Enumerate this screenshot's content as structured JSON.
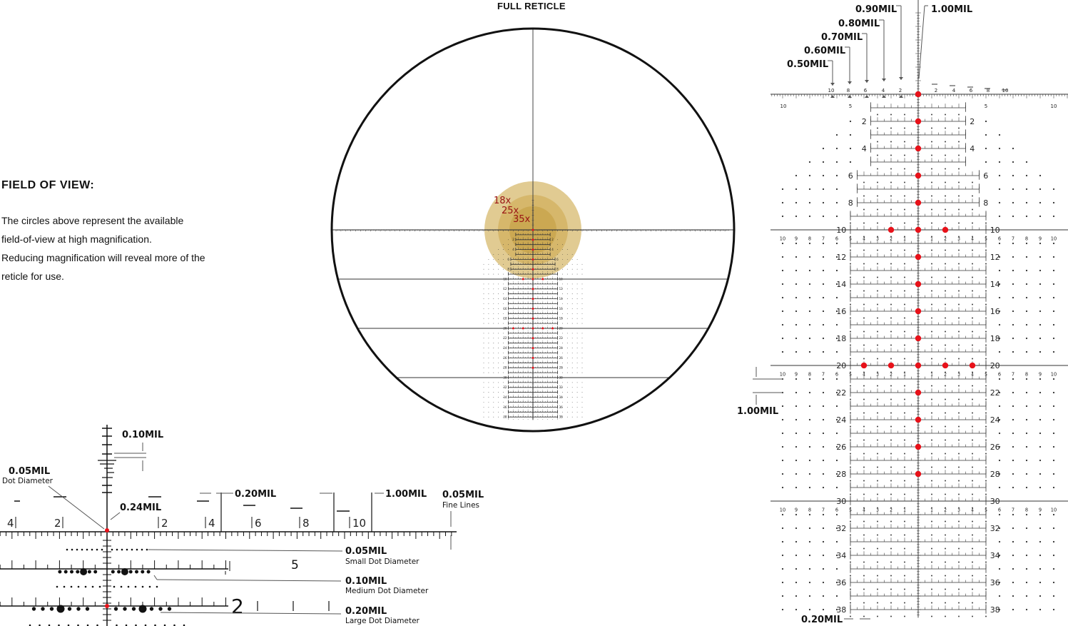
{
  "title": "FULL RETICLE",
  "fov": {
    "heading": "FIELD OF VIEW:",
    "lines": [
      "The circles above represent the available",
      "field-of-view at high magnification.",
      "Reducing magnification will reveal more of the",
      "reticle for use."
    ]
  },
  "magnifications": [
    "18x",
    "25x",
    "35x"
  ],
  "colors": {
    "accent_red": "#e8121a",
    "mag_label": "#9a1414",
    "gold_outer": "#dcc27f",
    "gold_mid": "#d3b464",
    "gold_inner": "#c9a64e"
  },
  "detail": {
    "scale_labels": [
      "4",
      "2",
      "2",
      "4",
      "6",
      "8",
      "10"
    ],
    "big_numbers": [
      "5",
      "2"
    ],
    "callouts": {
      "line_010": "0.10MIL",
      "dot_005": "0.05MIL",
      "dot_005_sub": "Dot Diameter",
      "gap_024": "0.24MIL",
      "line_020": "0.20MIL",
      "line_100": "1.00MIL",
      "fine_005": "0.05MIL",
      "fine_005_sub": "Fine Lines",
      "small_dot": "0.05MIL",
      "small_dot_sub": "Small Dot Diameter",
      "medium_dot": "0.10MIL",
      "medium_dot_sub": "Medium Dot Diameter",
      "large_dot": "0.20MIL",
      "large_dot_sub": "Large Dot Diameter"
    }
  },
  "reticle": {
    "row_labels": [
      "2",
      "4",
      "6",
      "8",
      "10",
      "12",
      "14",
      "16",
      "18",
      "20",
      "22",
      "24",
      "26",
      "28",
      "30",
      "32",
      "34",
      "36",
      "38"
    ],
    "wing_labels": [
      "10",
      "9",
      "8",
      "7",
      "6",
      "5",
      "4",
      "3",
      "2",
      "1"
    ],
    "top_scale_labels_upper": [
      "10",
      "8",
      "6",
      "4",
      "2",
      "2",
      "4",
      "6",
      "8",
      "10"
    ],
    "top_scale_labels_lower": [
      "10",
      "5",
      "5",
      "10"
    ],
    "stadia_callouts": [
      "0.50MIL",
      "0.60MIL",
      "0.70MIL",
      "0.80MIL",
      "0.90MIL",
      "1.00MIL"
    ],
    "row_spacing_callout": "1.00MIL",
    "line_gap_callout": "0.20MIL"
  }
}
